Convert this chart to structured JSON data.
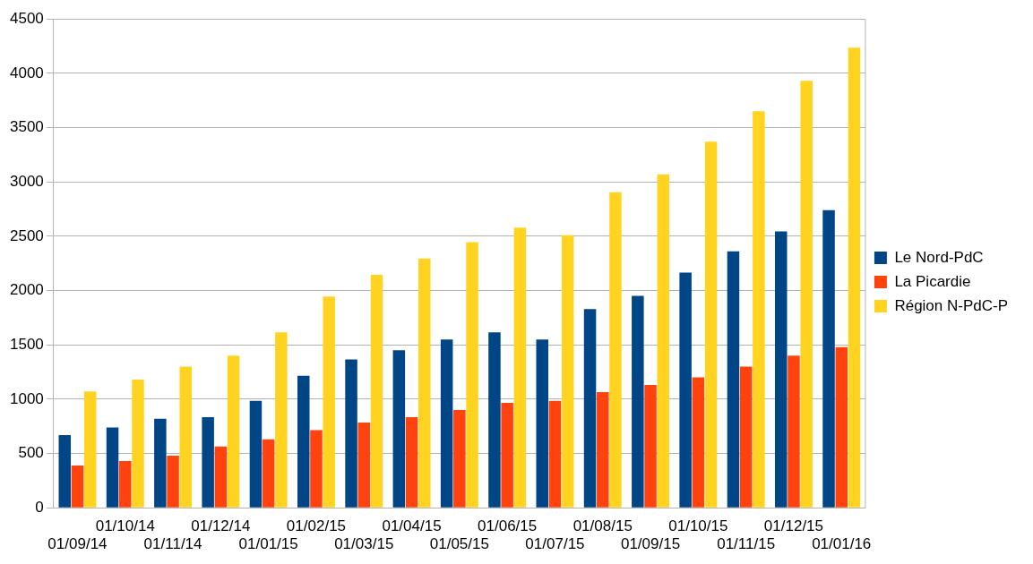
{
  "chart_data": {
    "type": "bar",
    "categories": [
      "01/09/14",
      "01/10/14",
      "01/11/14",
      "01/12/14",
      "01/01/15",
      "01/02/15",
      "01/03/15",
      "01/04/15",
      "01/05/15",
      "01/06/15",
      "01/07/15",
      "01/08/15",
      "01/09/15",
      "01/10/15",
      "01/11/15",
      "01/12/15",
      "01/01/16"
    ],
    "series": [
      {
        "name": "Le Nord-PdC",
        "color": "#004586",
        "values": [
          670,
          740,
          820,
          835,
          985,
          1215,
          1365,
          1450,
          1550,
          1615,
          1550,
          1830,
          1950,
          2165,
          2360,
          2545,
          2740
        ]
      },
      {
        "name": "La Picardie",
        "color": "#ff420e",
        "values": [
          390,
          430,
          480,
          565,
          630,
          715,
          785,
          835,
          900,
          965,
          985,
          1065,
          1130,
          1200,
          1300,
          1400,
          1480
        ]
      },
      {
        "name": "Région N-PdC-P",
        "color": "#ffd320",
        "values": [
          1070,
          1180,
          1300,
          1400,
          1615,
          1945,
          2145,
          2295,
          2445,
          2580,
          2510,
          2905,
          3070,
          3370,
          3650,
          3930,
          4235
        ]
      }
    ],
    "ylim": [
      0,
      4500
    ],
    "yticks": [
      0,
      500,
      1000,
      1500,
      2000,
      2500,
      3000,
      3500,
      4000,
      4500
    ],
    "grid": "y",
    "legend": "right"
  }
}
